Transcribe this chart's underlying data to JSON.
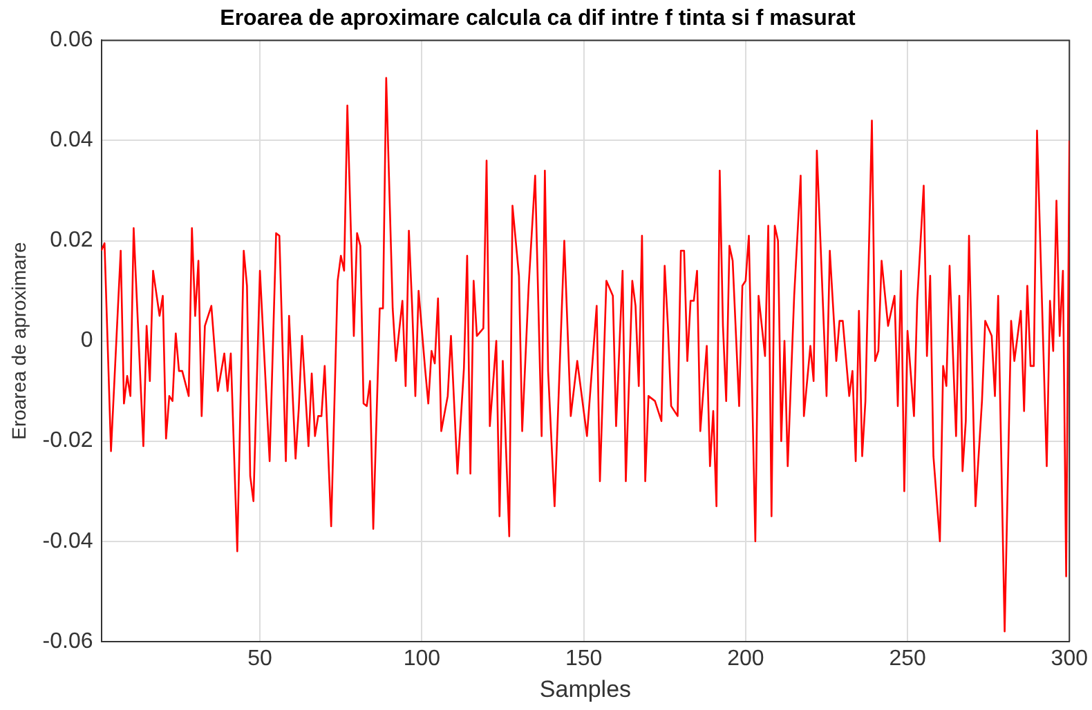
{
  "chart_data": {
    "type": "line",
    "title": "Eroarea de aproximare calcula ca dif intre f tinta si f masurat",
    "xlabel": "Samples",
    "ylabel": "Eroarea de aproximare",
    "xlim": [
      1,
      300
    ],
    "xticks": [
      50,
      100,
      150,
      200,
      250,
      300
    ],
    "ylim": [
      -0.06,
      0.06
    ],
    "yticks": [
      -0.06,
      -0.04,
      -0.02,
      0,
      0.02,
      0.04,
      0.06
    ],
    "grid": true,
    "series": [
      {
        "color": "#ff0000",
        "x": [
          1,
          2,
          4,
          7,
          8,
          9,
          10,
          11,
          14,
          15,
          16,
          17,
          19,
          20,
          21,
          22,
          23,
          24,
          25,
          26,
          28,
          29,
          30,
          31,
          32,
          33,
          35,
          37,
          39,
          40,
          41,
          43,
          45,
          46,
          47,
          48,
          49,
          50,
          53,
          55,
          56,
          58,
          59,
          61,
          62,
          63,
          65,
          66,
          67,
          68,
          69,
          70,
          72,
          74,
          75,
          76,
          77,
          79,
          80,
          81,
          82,
          83,
          84,
          85,
          87,
          88,
          89,
          91,
          92,
          94,
          95,
          96,
          97,
          98,
          99,
          101,
          102,
          103,
          104,
          105,
          106,
          108,
          109,
          111,
          113,
          114,
          115,
          116,
          117,
          119,
          120,
          121,
          123,
          124,
          125,
          127,
          128,
          130,
          131,
          133,
          135,
          137,
          138,
          139,
          141,
          144,
          146,
          148,
          151,
          154,
          155,
          157,
          159,
          160,
          162,
          163,
          165,
          166,
          167,
          168,
          169,
          170,
          172,
          174,
          175,
          176,
          177,
          179,
          180,
          181,
          182,
          183,
          184,
          185,
          186,
          188,
          189,
          190,
          191,
          192,
          193,
          194,
          195,
          196,
          198,
          199,
          200,
          201,
          203,
          204,
          206,
          207,
          208,
          209,
          210,
          211,
          212,
          213,
          215,
          217,
          218,
          220,
          221,
          222,
          225,
          226,
          228,
          229,
          230,
          232,
          233,
          234,
          235,
          236,
          237,
          239,
          240,
          241,
          242,
          244,
          246,
          247,
          248,
          249,
          250,
          252,
          253,
          255,
          256,
          257,
          258,
          260,
          261,
          262,
          263,
          265,
          266,
          267,
          268,
          269,
          271,
          273,
          274,
          276,
          277,
          278,
          280,
          282,
          283,
          285,
          286,
          287,
          288,
          289,
          290,
          293,
          294,
          295,
          296,
          297,
          298,
          299,
          300
        ],
        "values": [
          0.018,
          0.0195,
          -0.022,
          0.018,
          -0.0125,
          -0.007,
          -0.011,
          0.0225,
          -0.021,
          0.003,
          -0.008,
          0.014,
          0.005,
          0.009,
          -0.0195,
          -0.011,
          -0.012,
          0.0015,
          -0.006,
          -0.006,
          -0.011,
          0.0225,
          0.005,
          0.016,
          -0.015,
          0.003,
          0.007,
          -0.01,
          -0.0025,
          -0.01,
          -0.0025,
          -0.042,
          0.018,
          0.011,
          -0.027,
          -0.032,
          -0.009,
          0.014,
          -0.024,
          0.0215,
          0.021,
          -0.024,
          0.005,
          -0.0235,
          -0.0135,
          0.001,
          -0.021,
          -0.0065,
          -0.019,
          -0.015,
          -0.015,
          -0.005,
          -0.037,
          0.012,
          0.017,
          0.014,
          0.047,
          0.001,
          0.0215,
          0.019,
          -0.0125,
          -0.013,
          -0.008,
          -0.0375,
          0.0065,
          0.0065,
          0.0525,
          0.0065,
          -0.004,
          0.008,
          -0.009,
          0.022,
          0.007,
          -0.011,
          0.01,
          -0.0055,
          -0.0125,
          -0.002,
          -0.0045,
          0.0085,
          -0.018,
          -0.011,
          0.001,
          -0.0265,
          -0.0055,
          0.017,
          -0.0265,
          0.012,
          0.001,
          0.0025,
          0.036,
          -0.017,
          0,
          -0.035,
          -0.004,
          -0.039,
          0.027,
          0.013,
          -0.018,
          0.011,
          0.033,
          -0.019,
          0.034,
          -0.006,
          -0.033,
          0.02,
          -0.015,
          -0.004,
          -0.019,
          0.007,
          -0.028,
          0.012,
          0.009,
          -0.017,
          0.014,
          -0.028,
          0.012,
          0.007,
          -0.009,
          0.021,
          -0.028,
          -0.011,
          -0.012,
          -0.016,
          0.015,
          0.003,
          -0.013,
          -0.015,
          0.018,
          0.018,
          -0.004,
          0.008,
          0.008,
          0.014,
          -0.018,
          -0.001,
          -0.025,
          -0.014,
          -0.033,
          0.034,
          0.003,
          -0.012,
          0.019,
          0.016,
          -0.013,
          0.011,
          0.012,
          0.021,
          -0.04,
          0.009,
          -0.003,
          0.023,
          -0.035,
          0.023,
          0.02,
          -0.02,
          0,
          -0.025,
          0.009,
          0.033,
          -0.015,
          -0.001,
          -0.008,
          0.038,
          -0.011,
          0.018,
          -0.004,
          0.004,
          0.004,
          -0.011,
          -0.006,
          -0.024,
          0.006,
          -0.023,
          -0.012,
          0.044,
          -0.004,
          -0.002,
          0.016,
          0.003,
          0.009,
          -0.013,
          0.014,
          -0.03,
          0.002,
          -0.015,
          0.008,
          0.031,
          -0.003,
          0.013,
          -0.023,
          -0.04,
          -0.005,
          -0.009,
          0.015,
          -0.019,
          0.009,
          -0.026,
          -0.016,
          0.021,
          -0.033,
          -0.012,
          0.004,
          0.001,
          -0.011,
          0.009,
          -0.058,
          0.004,
          -0.004,
          0.006,
          -0.014,
          0.011,
          -0.005,
          -0.005,
          0.042,
          -0.025,
          0.008,
          -0.002,
          0.028,
          0.001,
          0.014,
          -0.047,
          0.04
        ]
      }
    ]
  }
}
